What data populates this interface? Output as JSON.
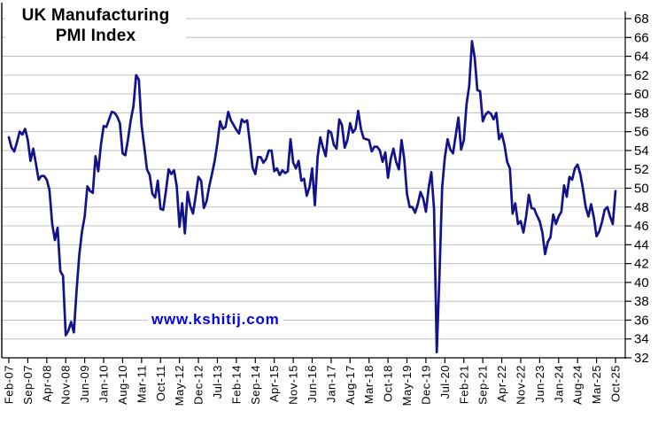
{
  "title": {
    "line1": "UK Manufacturing",
    "line2": "PMI Index"
  },
  "watermark": "www.kshitij.com",
  "colors": {
    "series": "#12128c",
    "watermark": "#0000ee",
    "gridline": "#c0c0c0",
    "axis": "#000000",
    "text": "#000000",
    "background": "#ffffff"
  },
  "chart_data": {
    "type": "line",
    "title": "UK Manufacturing PMI Index",
    "xlabel": "",
    "ylabel": "",
    "x_start": "Feb-2007",
    "x_end": "Oct-2025",
    "frequency": "monthly",
    "x_tick_interval_months": 7,
    "x_tick_labels": [
      "Feb-07",
      "Sep-07",
      "Apr-08",
      "Nov-08",
      "Jun-09",
      "Jan-10",
      "Aug-10",
      "Mar-11",
      "Oct-11",
      "May-12",
      "Dec-12",
      "Jul-13",
      "Feb-14",
      "Sep-14",
      "Apr-15",
      "Nov-15",
      "Jun-16",
      "Jan-17",
      "Aug-17",
      "Mar-18",
      "Oct-18",
      "May-19",
      "Dec-19",
      "Jul-20",
      "Feb-21",
      "Sep-21",
      "Apr-22",
      "Nov-22",
      "Jun-23",
      "Jan-24",
      "Aug-24",
      "Mar-25",
      "Oct-25"
    ],
    "ylim": [
      32,
      68
    ],
    "y_tick_step": 2,
    "y_axis_side": "right",
    "grid": "horizontal",
    "legend": "none",
    "series": [
      {
        "name": "UK Manufacturing PMI",
        "values": [
          55.4,
          54.3,
          53.9,
          54.9,
          56.0,
          55.7,
          56.3,
          55.1,
          52.9,
          54.2,
          52.6,
          50.9,
          51.3,
          51.3,
          50.9,
          49.8,
          46.2,
          44.5,
          45.8,
          41.2,
          40.7,
          34.4,
          34.9,
          35.8,
          34.7,
          39.1,
          42.9,
          45.4,
          47.0,
          50.2,
          49.7,
          49.5,
          53.4,
          51.8,
          54.6,
          56.6,
          56.5,
          57.3,
          58.1,
          58.0,
          57.6,
          56.9,
          53.7,
          53.5,
          55.2,
          57.2,
          58.7,
          62.0,
          61.5,
          56.7,
          54.4,
          52.0,
          51.4,
          49.4,
          49.0,
          50.8,
          47.8,
          47.7,
          49.7,
          52.0,
          51.5,
          51.9,
          50.2,
          45.9,
          48.4,
          45.2,
          49.6,
          48.1,
          47.3,
          49.2,
          51.2,
          50.8,
          47.9,
          48.6,
          50.2,
          51.5,
          52.9,
          54.8,
          57.1,
          56.3,
          56.5,
          58.1,
          57.2,
          56.7,
          56.2,
          55.8,
          57.3,
          57.0,
          57.2,
          54.8,
          52.2,
          51.5,
          53.3,
          53.3,
          52.7,
          53.1,
          54.0,
          54.0,
          51.8,
          52.1,
          51.4,
          51.9,
          51.6,
          51.8,
          55.2,
          52.7,
          52.1,
          52.9,
          50.8,
          51.0,
          49.2,
          50.1,
          52.1,
          48.2,
          53.3,
          55.4,
          54.3,
          53.4,
          56.1,
          55.9,
          54.6,
          54.2,
          57.3,
          56.7,
          54.3,
          55.1,
          56.9,
          55.9,
          56.3,
          58.2,
          56.3,
          55.3,
          55.2,
          55.1,
          53.9,
          54.4,
          54.4,
          54.0,
          52.8,
          53.8,
          51.1,
          53.1,
          54.2,
          52.8,
          52.0,
          55.1,
          53.1,
          49.4,
          48.0,
          48.0,
          47.4,
          48.3,
          49.6,
          48.9,
          47.5,
          50.0,
          51.7,
          47.8,
          32.6,
          40.7,
          50.1,
          53.3,
          55.2,
          54.1,
          53.7,
          55.6,
          57.5,
          54.1,
          55.1,
          58.9,
          60.9,
          65.6,
          63.9,
          60.4,
          60.3,
          57.1,
          57.8,
          58.1,
          57.9,
          57.3,
          58.0,
          55.2,
          55.8,
          54.6,
          52.8,
          52.1,
          47.3,
          48.4,
          46.2,
          46.5,
          45.3,
          47.0,
          49.3,
          47.9,
          47.8,
          47.1,
          46.5,
          45.3,
          43.0,
          44.3,
          44.8,
          47.2,
          46.2,
          47.0,
          47.5,
          50.3,
          49.1,
          51.2,
          50.9,
          52.1,
          52.5,
          51.5,
          49.9,
          48.0,
          47.0,
          48.3,
          46.9,
          44.9,
          45.4,
          46.4,
          47.7,
          48.0,
          47.0,
          46.2,
          49.7
        ]
      }
    ]
  }
}
